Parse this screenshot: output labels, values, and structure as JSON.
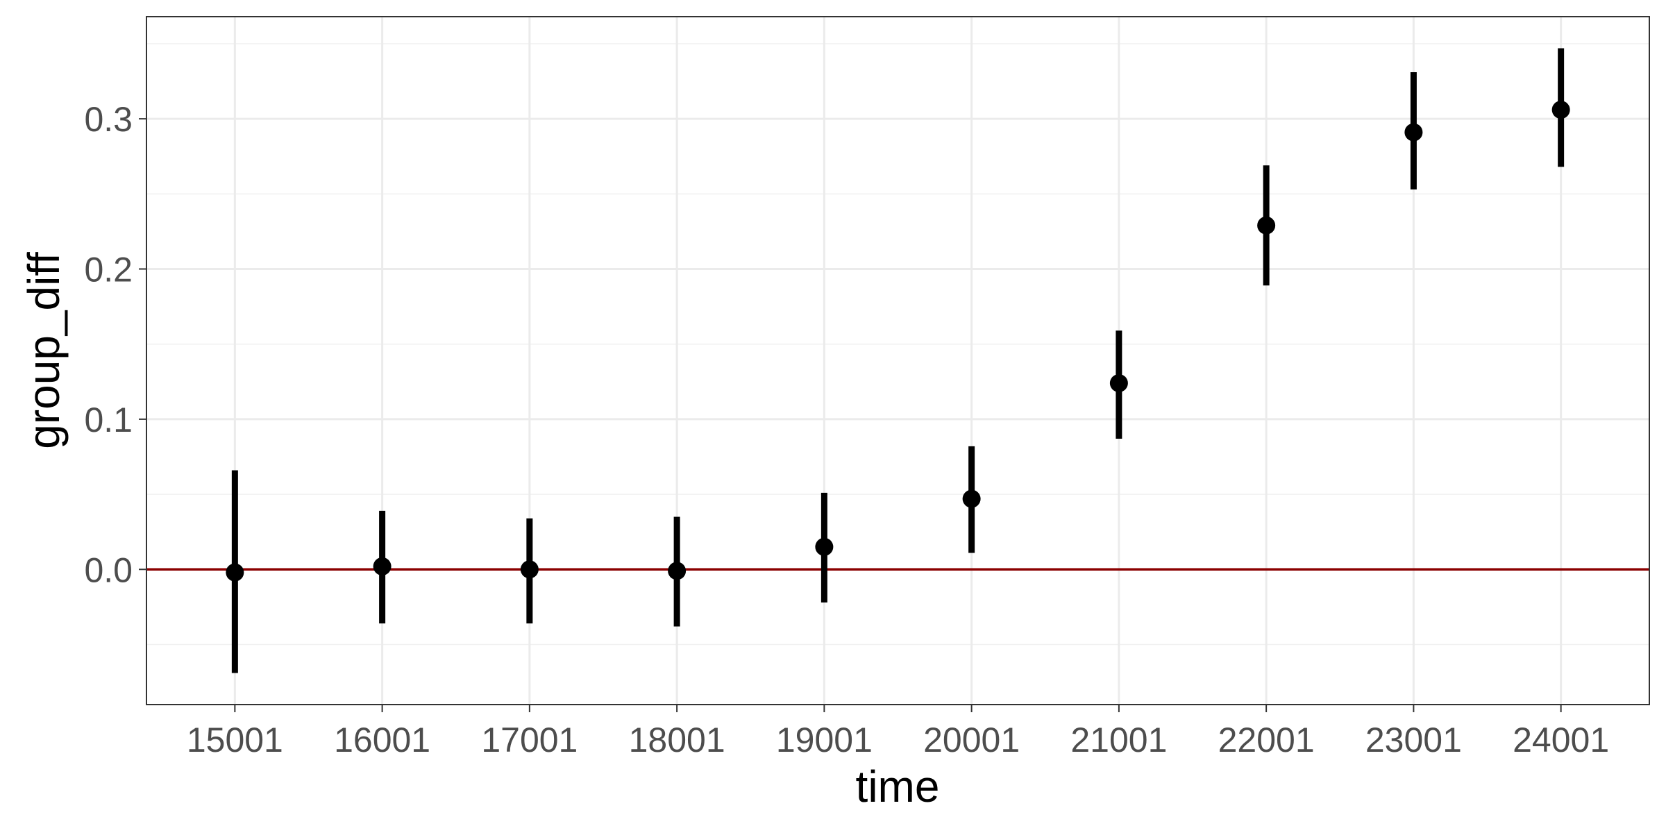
{
  "chart_data": {
    "type": "scatter",
    "xlabel": "time",
    "ylabel": "group_diff",
    "x_ticks": [
      "15001",
      "16001",
      "17001",
      "18001",
      "19001",
      "20001",
      "21001",
      "22001",
      "23001",
      "24001"
    ],
    "y_ticks": [
      "0.0",
      "0.1",
      "0.2",
      "0.3"
    ],
    "xlim": [
      14401,
      24601
    ],
    "ylim": [
      -0.09,
      0.368
    ],
    "grid": true,
    "points": [
      {
        "x": 15001,
        "y": -0.002,
        "ymin": -0.069,
        "ymax": 0.066
      },
      {
        "x": 16001,
        "y": 0.002,
        "ymin": -0.036,
        "ymax": 0.039
      },
      {
        "x": 17001,
        "y": 0.0,
        "ymin": -0.036,
        "ymax": 0.034
      },
      {
        "x": 18001,
        "y": -0.001,
        "ymin": -0.038,
        "ymax": 0.035
      },
      {
        "x": 19001,
        "y": 0.015,
        "ymin": -0.022,
        "ymax": 0.051
      },
      {
        "x": 20001,
        "y": 0.047,
        "ymin": 0.011,
        "ymax": 0.082
      },
      {
        "x": 21001,
        "y": 0.124,
        "ymin": 0.087,
        "ymax": 0.159
      },
      {
        "x": 22001,
        "y": 0.229,
        "ymin": 0.189,
        "ymax": 0.269
      },
      {
        "x": 23001,
        "y": 0.291,
        "ymin": 0.253,
        "ymax": 0.331
      },
      {
        "x": 24001,
        "y": 0.306,
        "ymin": 0.268,
        "ymax": 0.347
      }
    ],
    "reference_line": {
      "y": 0.0,
      "color": "#8b0000"
    },
    "point_color": "#000000"
  }
}
